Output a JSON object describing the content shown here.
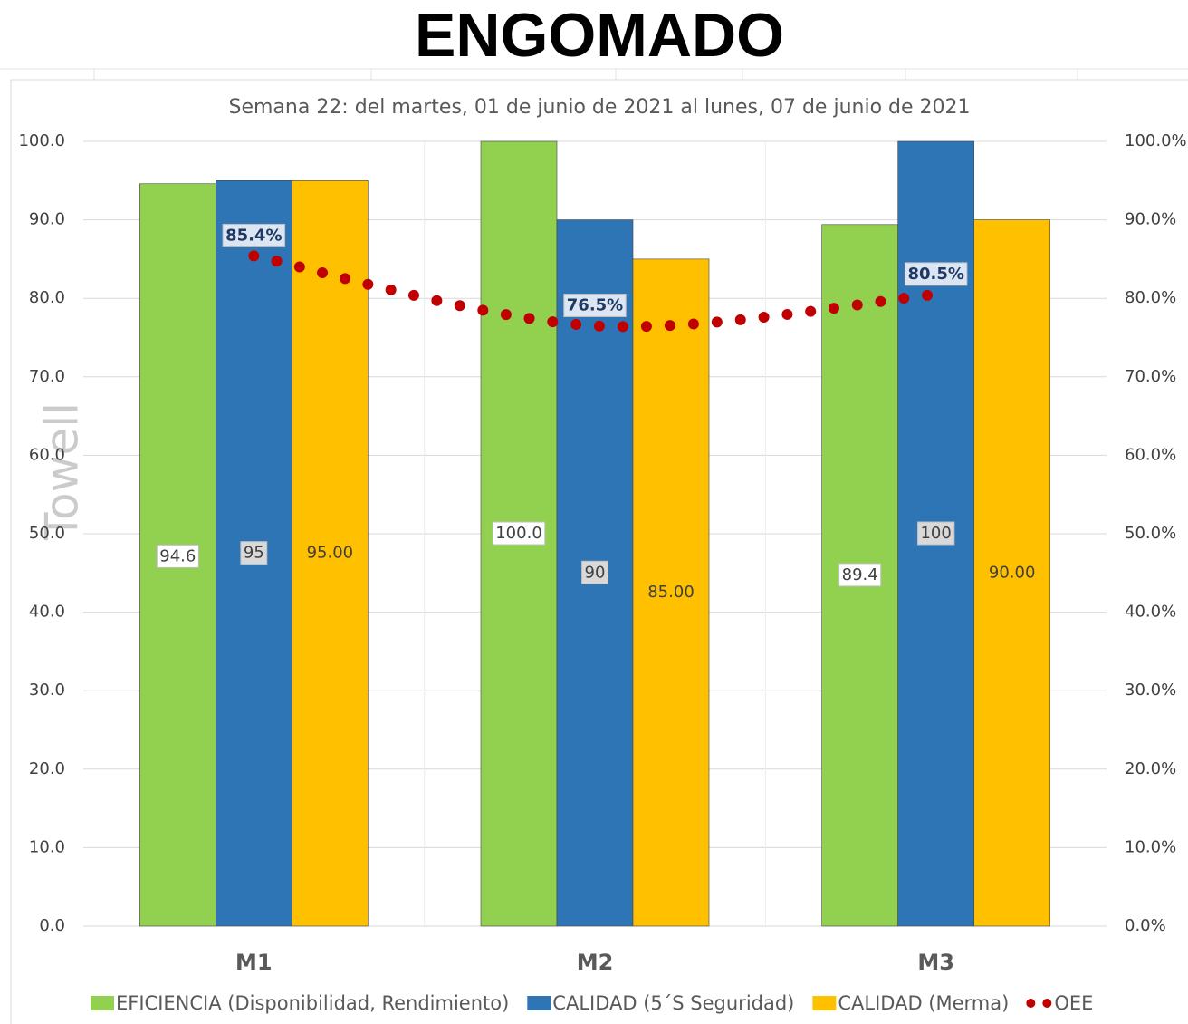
{
  "chart_data": {
    "type": "bar",
    "title": "ENGOMADO",
    "subtitle": "Semana 22: del martes, 01 de junio de 2021 al lunes, 07 de junio de 2021",
    "watermark": "Towell",
    "categories": [
      "M1",
      "M2",
      "M3"
    ],
    "series": [
      {
        "name": "EFICIENCIA (Disponibilidad, Rendimiento)",
        "color": "#92d050",
        "values": [
          94.6,
          100,
          89.4
        ],
        "value_labels": [
          "94.6",
          "100.0",
          "89.4"
        ]
      },
      {
        "name": "CALIDAD (5´S Seguridad)",
        "color": "#2e75b6",
        "values": [
          95,
          90,
          100
        ]
      },
      {
        "name": "CALIDAD (Merma)",
        "color": "#ffc000",
        "values": [
          95,
          85,
          90
        ],
        "value_labels": [
          "95.00",
          "85.00",
          "90.00"
        ]
      },
      {
        "name": "OEE",
        "color": "#c00000",
        "type": "line",
        "axis": "y2",
        "values": [
          85.4,
          76.5,
          80.5
        ],
        "value_labels": [
          "85.4%",
          "76.5%",
          "80.5%"
        ]
      }
    ],
    "ylim": [
      0,
      100
    ],
    "yticks": [
      {
        "value": 0,
        "label": "0.0"
      },
      {
        "value": 10,
        "label": "10.0"
      },
      {
        "value": 20,
        "label": "20.0"
      },
      {
        "value": 30,
        "label": "30.0"
      },
      {
        "value": 40,
        "label": "40.0"
      },
      {
        "value": 50,
        "label": "50.0"
      },
      {
        "value": 60,
        "label": "60.0"
      },
      {
        "value": 70,
        "label": "70.0"
      },
      {
        "value": 80,
        "label": "80.0"
      },
      {
        "value": 90,
        "label": "90.0"
      },
      {
        "value": 100,
        "label": "100.0"
      }
    ],
    "y2lim": [
      0,
      100
    ],
    "y2ticks": [
      {
        "value": 0,
        "label": "0.0%"
      },
      {
        "value": 10,
        "label": "10.0%"
      },
      {
        "value": 20,
        "label": "20.0%"
      },
      {
        "value": 30,
        "label": "30.0%"
      },
      {
        "value": 40,
        "label": "40.0%"
      },
      {
        "value": 50,
        "label": "50.0%"
      },
      {
        "value": 60,
        "label": "60.0%"
      },
      {
        "value": 70,
        "label": "70.0%"
      },
      {
        "value": 80,
        "label": "80.0%"
      },
      {
        "value": 90,
        "label": "90.0%"
      },
      {
        "value": 100,
        "label": "100.0%"
      }
    ],
    "grid": true,
    "legend": "bottom"
  }
}
